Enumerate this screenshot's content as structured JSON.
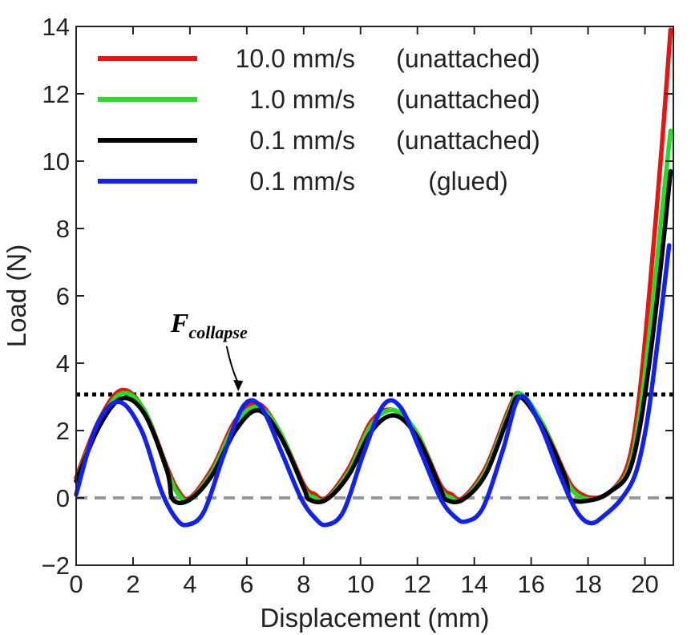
{
  "chart_data": {
    "type": "line",
    "xlabel": "Displacement (mm)",
    "ylabel": "Load (N)",
    "xlim": [
      0,
      21
    ],
    "ylim": [
      -2,
      14
    ],
    "xticks": [
      0,
      2,
      4,
      6,
      8,
      10,
      12,
      14,
      16,
      18,
      20
    ],
    "yticks": [
      -2,
      0,
      2,
      4,
      6,
      8,
      10,
      12,
      14
    ],
    "ytick_labels": [
      "−2",
      "0",
      "2",
      "4",
      "6",
      "8",
      "10",
      "12",
      "14"
    ],
    "legend_position": "top-left",
    "reference_lines": [
      {
        "label": "F",
        "label_sub": "collapse",
        "y": 3.07,
        "style": "dotted",
        "color": "#000000"
      },
      {
        "label": "",
        "y": 0,
        "style": "dashed",
        "color": "#999999"
      }
    ],
    "annotation": {
      "text": "F",
      "sub": "collapse",
      "x": 5.8,
      "y": 4.6,
      "arrow_to": [
        5.7,
        3.07
      ]
    },
    "series": [
      {
        "name": "10.0 mm/s",
        "condition": "(unattached)",
        "color": "#ee1111",
        "x": [
          0,
          0.8,
          1.6,
          2.4,
          3.2,
          3.6,
          4.0,
          4.8,
          5.6,
          6.4,
          7.2,
          8.0,
          8.4,
          8.8,
          9.6,
          10.4,
          11.2,
          12.0,
          12.8,
          13.2,
          13.6,
          14.4,
          15.2,
          15.6,
          16.4,
          17.2,
          17.6,
          18.2,
          18.8,
          19.4,
          19.8,
          20.2,
          20.6,
          20.9
        ],
        "y": [
          0.6,
          2.3,
          3.2,
          2.6,
          0.9,
          0.2,
          0.0,
          0.9,
          2.3,
          2.8,
          1.9,
          0.4,
          0.1,
          0.0,
          0.9,
          2.3,
          2.6,
          1.9,
          0.4,
          0.1,
          0.0,
          0.9,
          2.6,
          3.1,
          2.2,
          0.7,
          0.2,
          0.0,
          0.2,
          1.0,
          3.0,
          6.5,
          10.5,
          13.9
        ]
      },
      {
        "name": "1.0 mm/s",
        "condition": "(unattached)",
        "color": "#22dd22",
        "x": [
          0,
          0.8,
          1.6,
          2.4,
          3.2,
          3.6,
          4.0,
          4.8,
          5.6,
          6.4,
          7.2,
          8.0,
          8.4,
          8.8,
          9.6,
          10.4,
          11.2,
          12.0,
          12.8,
          13.2,
          13.6,
          14.4,
          15.2,
          15.6,
          16.4,
          17.2,
          17.6,
          18.2,
          18.8,
          19.4,
          19.8,
          20.2,
          20.6,
          20.9
        ],
        "y": [
          0.5,
          2.2,
          3.1,
          2.6,
          0.8,
          0.1,
          -0.05,
          0.8,
          2.2,
          2.7,
          1.9,
          0.3,
          0.0,
          -0.05,
          0.8,
          2.2,
          2.6,
          1.9,
          0.3,
          0.0,
          -0.05,
          0.8,
          2.5,
          3.1,
          2.2,
          0.6,
          0.1,
          -0.05,
          0.2,
          0.8,
          2.4,
          5.2,
          8.5,
          10.9
        ]
      },
      {
        "name": "0.1 mm/s",
        "condition": "(unattached)",
        "color": "#000000",
        "x": [
          0,
          0.8,
          1.6,
          2.4,
          3.2,
          3.4,
          4.0,
          4.8,
          5.6,
          6.4,
          7.2,
          8.0,
          8.2,
          8.8,
          9.6,
          10.4,
          11.2,
          12.0,
          12.8,
          13.0,
          13.6,
          14.4,
          15.2,
          15.6,
          16.4,
          17.2,
          17.4,
          18.2,
          18.8,
          19.4,
          19.8,
          20.2,
          20.6,
          20.9
        ],
        "y": [
          0.5,
          2.1,
          2.95,
          2.5,
          0.8,
          -0.05,
          -0.05,
          0.7,
          2.0,
          2.6,
          1.8,
          0.3,
          -0.05,
          -0.05,
          0.7,
          2.0,
          2.45,
          1.8,
          0.3,
          -0.05,
          -0.05,
          0.7,
          2.4,
          3.0,
          2.1,
          0.6,
          -0.05,
          -0.05,
          0.2,
          0.7,
          2.0,
          4.3,
          7.2,
          9.7
        ]
      },
      {
        "name": "0.1 mm/s",
        "condition": "(glued)",
        "color": "#1122ee",
        "x": [
          0,
          0.7,
          1.5,
          2.3,
          3.0,
          3.5,
          3.9,
          4.5,
          5.2,
          5.9,
          6.5,
          7.2,
          7.9,
          8.4,
          8.8,
          9.4,
          10.1,
          10.8,
          11.4,
          12.1,
          12.8,
          13.3,
          13.7,
          14.3,
          15.0,
          15.6,
          16.3,
          17.0,
          17.6,
          18.1,
          18.6,
          19.2,
          19.7,
          20.1,
          20.5,
          20.85
        ],
        "y": [
          0.1,
          2.1,
          2.85,
          2.0,
          0.2,
          -0.6,
          -0.8,
          -0.4,
          1.3,
          2.75,
          2.7,
          1.4,
          0.0,
          -0.6,
          -0.8,
          -0.4,
          1.3,
          2.75,
          2.7,
          1.4,
          0.0,
          -0.55,
          -0.7,
          -0.3,
          1.4,
          3.0,
          2.2,
          0.7,
          -0.4,
          -0.75,
          -0.5,
          0.0,
          0.8,
          2.4,
          5.0,
          7.5
        ]
      }
    ]
  }
}
